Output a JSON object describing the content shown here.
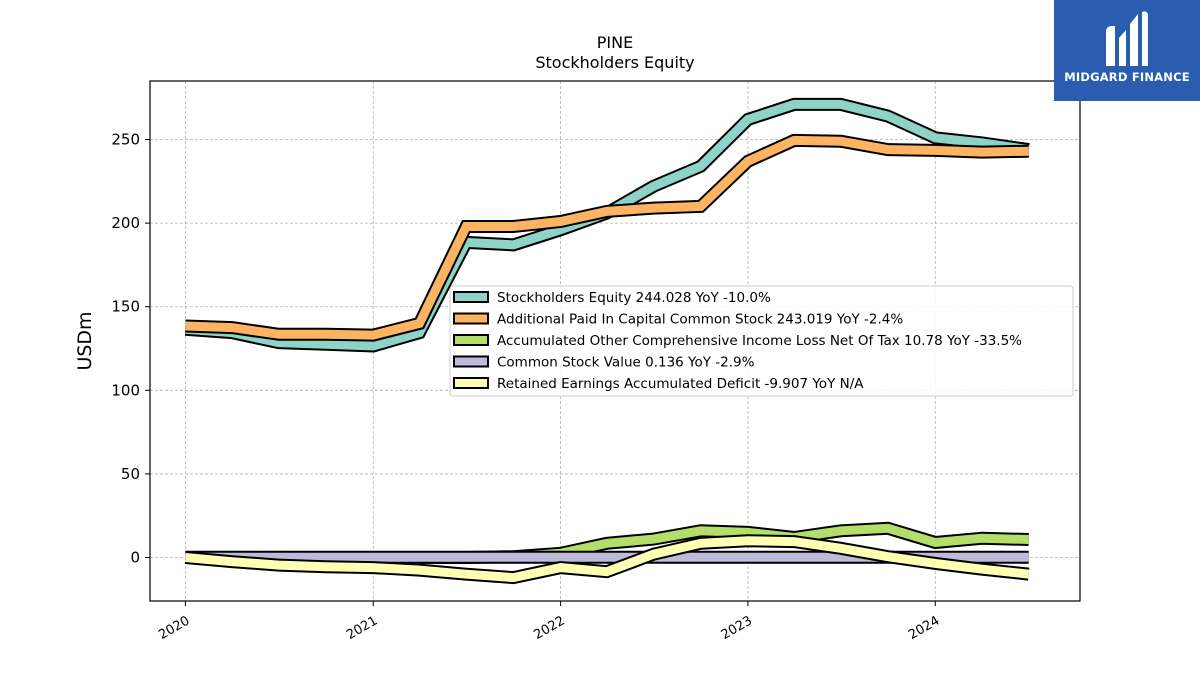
{
  "logo": {
    "text": "MIDGARD FINANCE",
    "icon": "midgard-m-logo-icon",
    "bg_color": "#2a5db0"
  },
  "chart_data": {
    "type": "line",
    "title": "PINE",
    "subtitle": "Stockholders  Equity",
    "xlabel": "",
    "ylabel": "USDm",
    "xlim": [
      "2019-10-24",
      "2024-10-09"
    ],
    "ylim": [
      -26,
      285
    ],
    "grid": true,
    "legend_position": "center-right",
    "x_ticks": [
      "2020",
      "2021",
      "2022",
      "2023",
      "2024"
    ],
    "y_ticks": [
      0,
      50,
      100,
      150,
      200,
      250
    ],
    "x": [
      "2020-01-01",
      "2020-04-01",
      "2020-07-01",
      "2020-10-01",
      "2021-01-01",
      "2021-04-01",
      "2021-07-01",
      "2021-10-01",
      "2022-01-01",
      "2022-04-01",
      "2022-07-01",
      "2022-10-01",
      "2023-01-01",
      "2023-04-01",
      "2023-07-01",
      "2023-10-01",
      "2024-01-01",
      "2024-04-01",
      "2024-07-01"
    ],
    "series": [
      {
        "name": "Stockholders Equity  244.028 YoY -10.0%",
        "color": "#8dd3c7",
        "values": [
          136.5,
          134.5,
          128.5,
          127.5,
          126.5,
          134.5,
          188.5,
          187,
          196,
          206,
          222,
          234,
          262,
          271,
          271,
          264,
          251,
          248,
          244
        ]
      },
      {
        "name": "Additional Paid In Capital Common Stock  243.019 YoY -2.4%",
        "color": "#fdb462",
        "values": [
          138.5,
          137.5,
          133.5,
          133.5,
          133,
          140,
          198,
          198,
          201,
          207,
          209,
          210,
          237,
          249.5,
          249,
          244,
          243.5,
          242.5,
          243
        ]
      },
      {
        "name": "Accumulated Other Comprehensive Income Loss Net Of Tax  10.78 YoY -33.5%",
        "color": "#b3de69",
        "values": [
          0,
          0,
          0,
          0,
          0,
          0,
          0,
          0.5,
          2.5,
          8.5,
          11,
          16,
          15,
          12,
          16,
          17.5,
          9,
          11.5,
          10.8
        ]
      },
      {
        "name": "Common Stock Value  0.136 YoY -2.9%",
        "color": "#bebada",
        "values": [
          0.14,
          0.14,
          0.14,
          0.14,
          0.14,
          0.14,
          0.14,
          0.14,
          0.14,
          0.14,
          0.14,
          0.14,
          0.14,
          0.14,
          0.14,
          0.14,
          0.14,
          0.14,
          0.136
        ]
      },
      {
        "name": "Retained Earnings Accumulated Deficit  -9.907 YoY N/A",
        "color": "#ffffb3",
        "values": [
          0,
          -2.5,
          -4.5,
          -5.5,
          -6,
          -7.5,
          -10,
          -12,
          -6,
          -8.5,
          2,
          8.5,
          10,
          9.5,
          5.5,
          0.5,
          -3.5,
          -7,
          -9.9
        ]
      }
    ]
  }
}
